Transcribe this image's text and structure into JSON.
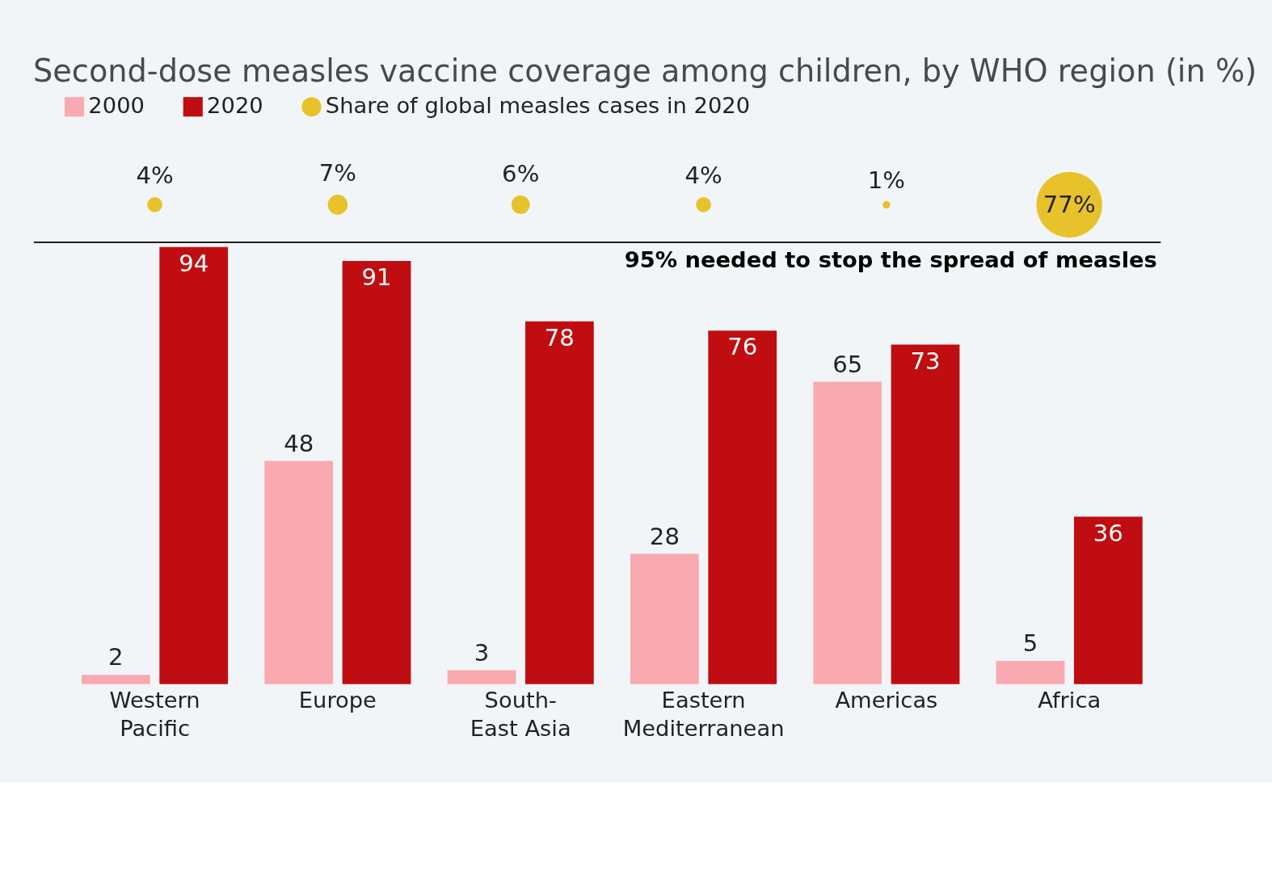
{
  "chart_data": [
    {
      "type": "other",
      "series": [
        {
          "name": "Share of global measles cases in 2020",
          "color": "#e8c22a",
          "values": [
            4,
            7,
            6,
            4,
            1,
            77
          ],
          "value_labels": [
            "4%",
            "7%",
            "6%",
            "4%",
            "1%",
            "77%"
          ]
        }
      ]
    },
    {
      "type": "bar",
      "title": "Second-dose measles vaccine coverage among children, by WHO region (in %)",
      "categories": [
        "Western Pacific",
        "Europe",
        "South-East Asia",
        "Eastern Mediterranean",
        "Americas",
        "Africa"
      ],
      "series": [
        {
          "name": "2000",
          "color": "#f9a9b0",
          "values": [
            2,
            48,
            3,
            28,
            65,
            5
          ]
        },
        {
          "name": "2020",
          "color": "#c00d11",
          "values": [
            94,
            91,
            78,
            76,
            73,
            36
          ]
        }
      ],
      "ylim": [
        0,
        95
      ],
      "tick_labels": "x",
      "data_labels": true,
      "legend": "top",
      "ref_lines": [
        {
          "axis": "y",
          "value": 95,
          "label": "95% needed to stop the spread of measles",
          "color": "#000000"
        }
      ]
    }
  ]
}
